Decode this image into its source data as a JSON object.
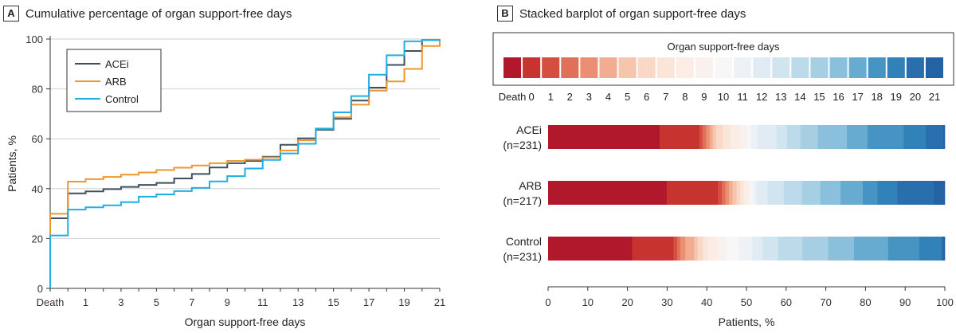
{
  "panels": {
    "a_letter": "A",
    "a_title": "Cumulative percentage of organ support-free days",
    "b_letter": "B",
    "b_title": "Stacked barplot of organ support-free days"
  },
  "chart_data": [
    {
      "type": "line",
      "step": true,
      "xlabel": "Organ support-free days",
      "ylabel": "Patients, %",
      "x_categories": [
        "Death",
        "0",
        "1",
        "2",
        "3",
        "4",
        "5",
        "6",
        "7",
        "8",
        "9",
        "10",
        "11",
        "12",
        "13",
        "14",
        "15",
        "16",
        "17",
        "18",
        "19",
        "20",
        "21"
      ],
      "x_tick_labels": [
        "Death",
        "1",
        "3",
        "5",
        "7",
        "9",
        "11",
        "13",
        "15",
        "17",
        "19",
        "21"
      ],
      "ylim": [
        0,
        100
      ],
      "y_ticks": [
        0,
        20,
        40,
        60,
        80,
        100
      ],
      "grid": "horizontal",
      "legend_position": "top-left",
      "series": [
        {
          "name": "ACEi",
          "color": "#3d5060",
          "values": [
            28.1,
            38.1,
            38.9,
            39.8,
            40.7,
            41.5,
            42.3,
            44.1,
            45.9,
            48.5,
            50.2,
            51.1,
            52.8,
            57.6,
            60.2,
            63.6,
            68.0,
            75.3,
            80.5,
            89.6,
            95.2,
            99.6,
            100
          ]
        },
        {
          "name": "ARB",
          "color": "#f0962e",
          "values": [
            29.9,
            42.8,
            43.8,
            44.7,
            45.6,
            46.5,
            47.5,
            48.4,
            49.3,
            50.2,
            51.1,
            51.6,
            52.5,
            55.3,
            59.4,
            64.0,
            68.6,
            73.7,
            79.3,
            83.0,
            88.0,
            97.2,
            100
          ]
        },
        {
          "name": "Control",
          "color": "#22aee3",
          "values": [
            21.2,
            31.6,
            32.5,
            33.3,
            34.6,
            36.8,
            37.7,
            39.0,
            40.3,
            42.9,
            45.0,
            48.1,
            51.5,
            54.1,
            58.0,
            64.1,
            70.6,
            77.1,
            85.7,
            93.5,
            99.1,
            99.6,
            100
          ]
        }
      ]
    },
    {
      "type": "bar",
      "orientation": "horizontal",
      "stacked": true,
      "legend_title": "Organ support-free days",
      "legend_labels": [
        "Death",
        "0",
        "1",
        "2",
        "3",
        "4",
        "5",
        "6",
        "7",
        "8",
        "9",
        "10",
        "11",
        "12",
        "13",
        "14",
        "15",
        "16",
        "17",
        "18",
        "19",
        "20",
        "21"
      ],
      "segment_colors": [
        "#b2182b",
        "#c7332f",
        "#d44f40",
        "#e07058",
        "#ea8f72",
        "#f2ad90",
        "#f6c5ad",
        "#f9d8c7",
        "#fbe4d8",
        "#fbede6",
        "#f8f1ee",
        "#f7f7f7",
        "#eef2f6",
        "#e0ebf4",
        "#d1e5f0",
        "#bcdaea",
        "#a6cfe3",
        "#8ac0db",
        "#68abd0",
        "#4694c4",
        "#3282ba",
        "#2a6fad",
        "#2262a5"
      ],
      "xlabel": "Patients, %",
      "xlim": [
        0,
        100
      ],
      "x_ticks": [
        0,
        10,
        20,
        30,
        40,
        50,
        60,
        70,
        80,
        90,
        100
      ],
      "groups": [
        {
          "label": "ACEi",
          "n_label": "(n=231)",
          "values": [
            28.1,
            10.0,
            0.8,
            0.9,
            0.9,
            0.8,
            0.8,
            1.8,
            1.8,
            2.6,
            1.7,
            0.9,
            1.7,
            4.8,
            2.6,
            3.4,
            4.4,
            7.3,
            5.2,
            9.1,
            5.6,
            4.4,
            0.4
          ]
        },
        {
          "label": "ARB",
          "n_label": "(n=217)",
          "values": [
            29.9,
            12.9,
            1.0,
            0.9,
            0.9,
            0.9,
            1.0,
            0.9,
            0.9,
            0.9,
            0.9,
            0.5,
            0.9,
            2.8,
            4.1,
            4.6,
            4.6,
            5.1,
            5.6,
            3.7,
            5.0,
            9.2,
            2.8
          ]
        },
        {
          "label": "Control",
          "n_label": "(n=231)",
          "values": [
            21.2,
            10.4,
            0.9,
            0.8,
            1.3,
            2.2,
            0.9,
            1.3,
            1.3,
            2.6,
            2.1,
            3.1,
            3.4,
            2.6,
            3.9,
            6.1,
            6.5,
            6.5,
            8.6,
            7.8,
            5.6,
            0.5,
            0.4
          ]
        }
      ]
    }
  ]
}
